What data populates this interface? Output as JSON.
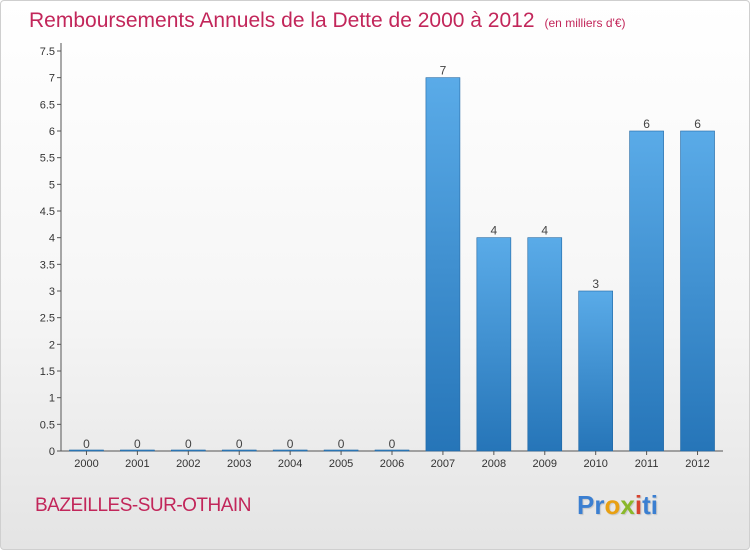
{
  "header": {
    "title": "Remboursements Annuels de la Dette de 2000 à 2012",
    "unit": "(en milliers d'€)"
  },
  "footer": {
    "commune": "BAZEILLES-SUR-OTHAIN",
    "logo_parts": [
      "Pr",
      "o",
      "x",
      "i",
      "ti"
    ]
  },
  "colors": {
    "title": "#c2265a",
    "bar_top": "#5aabe8",
    "bar_bottom": "#2675b8",
    "axis": "#555555"
  },
  "chart_data": {
    "type": "bar",
    "title": "Remboursements Annuels de la Dette de 2000 à 2012",
    "categories": [
      "2000",
      "2001",
      "2002",
      "2003",
      "2004",
      "2005",
      "2006",
      "2007",
      "2008",
      "2009",
      "2010",
      "2011",
      "2012"
    ],
    "values": [
      0,
      0,
      0,
      0,
      0,
      0,
      0,
      7,
      4,
      4,
      3,
      6,
      6
    ],
    "value_labels": [
      "0",
      "0",
      "0",
      "0",
      "0",
      "0",
      "0",
      "7",
      "4",
      "4",
      "3",
      "6",
      "6"
    ],
    "y_ticks": [
      {
        "value": 0,
        "label": "0"
      },
      {
        "value": 0.5,
        "label": "0.5"
      },
      {
        "value": 1,
        "label": "1"
      },
      {
        "value": 1.5,
        "label": "1.5"
      },
      {
        "value": 2,
        "label": "2"
      },
      {
        "value": 2.5,
        "label": "2.5"
      },
      {
        "value": 3,
        "label": "3"
      },
      {
        "value": 3.5,
        "label": "3.5"
      },
      {
        "value": 4,
        "label": "4"
      },
      {
        "value": 4.5,
        "label": "4.5"
      },
      {
        "value": 5,
        "label": "5"
      },
      {
        "value": 5.5,
        "label": "5.5"
      },
      {
        "value": 6,
        "label": "6"
      },
      {
        "value": 6.5,
        "label": "6.5"
      },
      {
        "value": 7,
        "label": "7"
      },
      {
        "value": 7.5,
        "label": "7.5"
      }
    ],
    "ylim": [
      0,
      7.5
    ],
    "xlabel": "",
    "ylabel": "",
    "grid": false,
    "legend": "none"
  }
}
